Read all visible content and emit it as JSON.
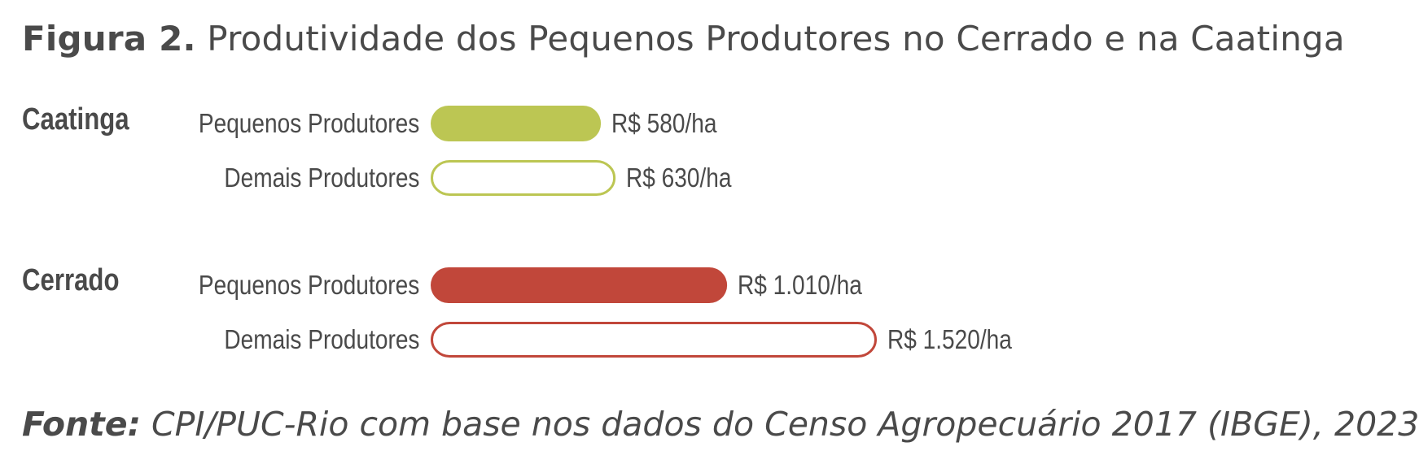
{
  "figure": {
    "label": "Figura 2.",
    "title": "Produtividade dos Pequenos Produtores no Cerrado e na Caatinga"
  },
  "source": {
    "label": "Fonte:",
    "text": "CPI/PUC-Rio com base nos dados do Censo Agropecuário 2017 (IBGE), 2023"
  },
  "chart_data": {
    "type": "bar",
    "orientation": "horizontal",
    "unit": "R$/ha",
    "groups": [
      {
        "name": "Caatinga",
        "color": "#bcc653",
        "bars": [
          {
            "label": "Pequenos Produtores",
            "value": 580,
            "display": "R$ 580/ha",
            "style": "filled"
          },
          {
            "label": "Demais Produtores",
            "value": 630,
            "display": "R$ 630/ha",
            "style": "outline"
          }
        ]
      },
      {
        "name": "Cerrado",
        "color": "#c1473a",
        "bars": [
          {
            "label": "Pequenos Produtores",
            "value": 1010,
            "display": "R$ 1.010/ha",
            "style": "filled"
          },
          {
            "label": "Demais Produtores",
            "value": 1520,
            "display": "R$ 1.520/ha",
            "style": "outline"
          }
        ]
      }
    ]
  }
}
